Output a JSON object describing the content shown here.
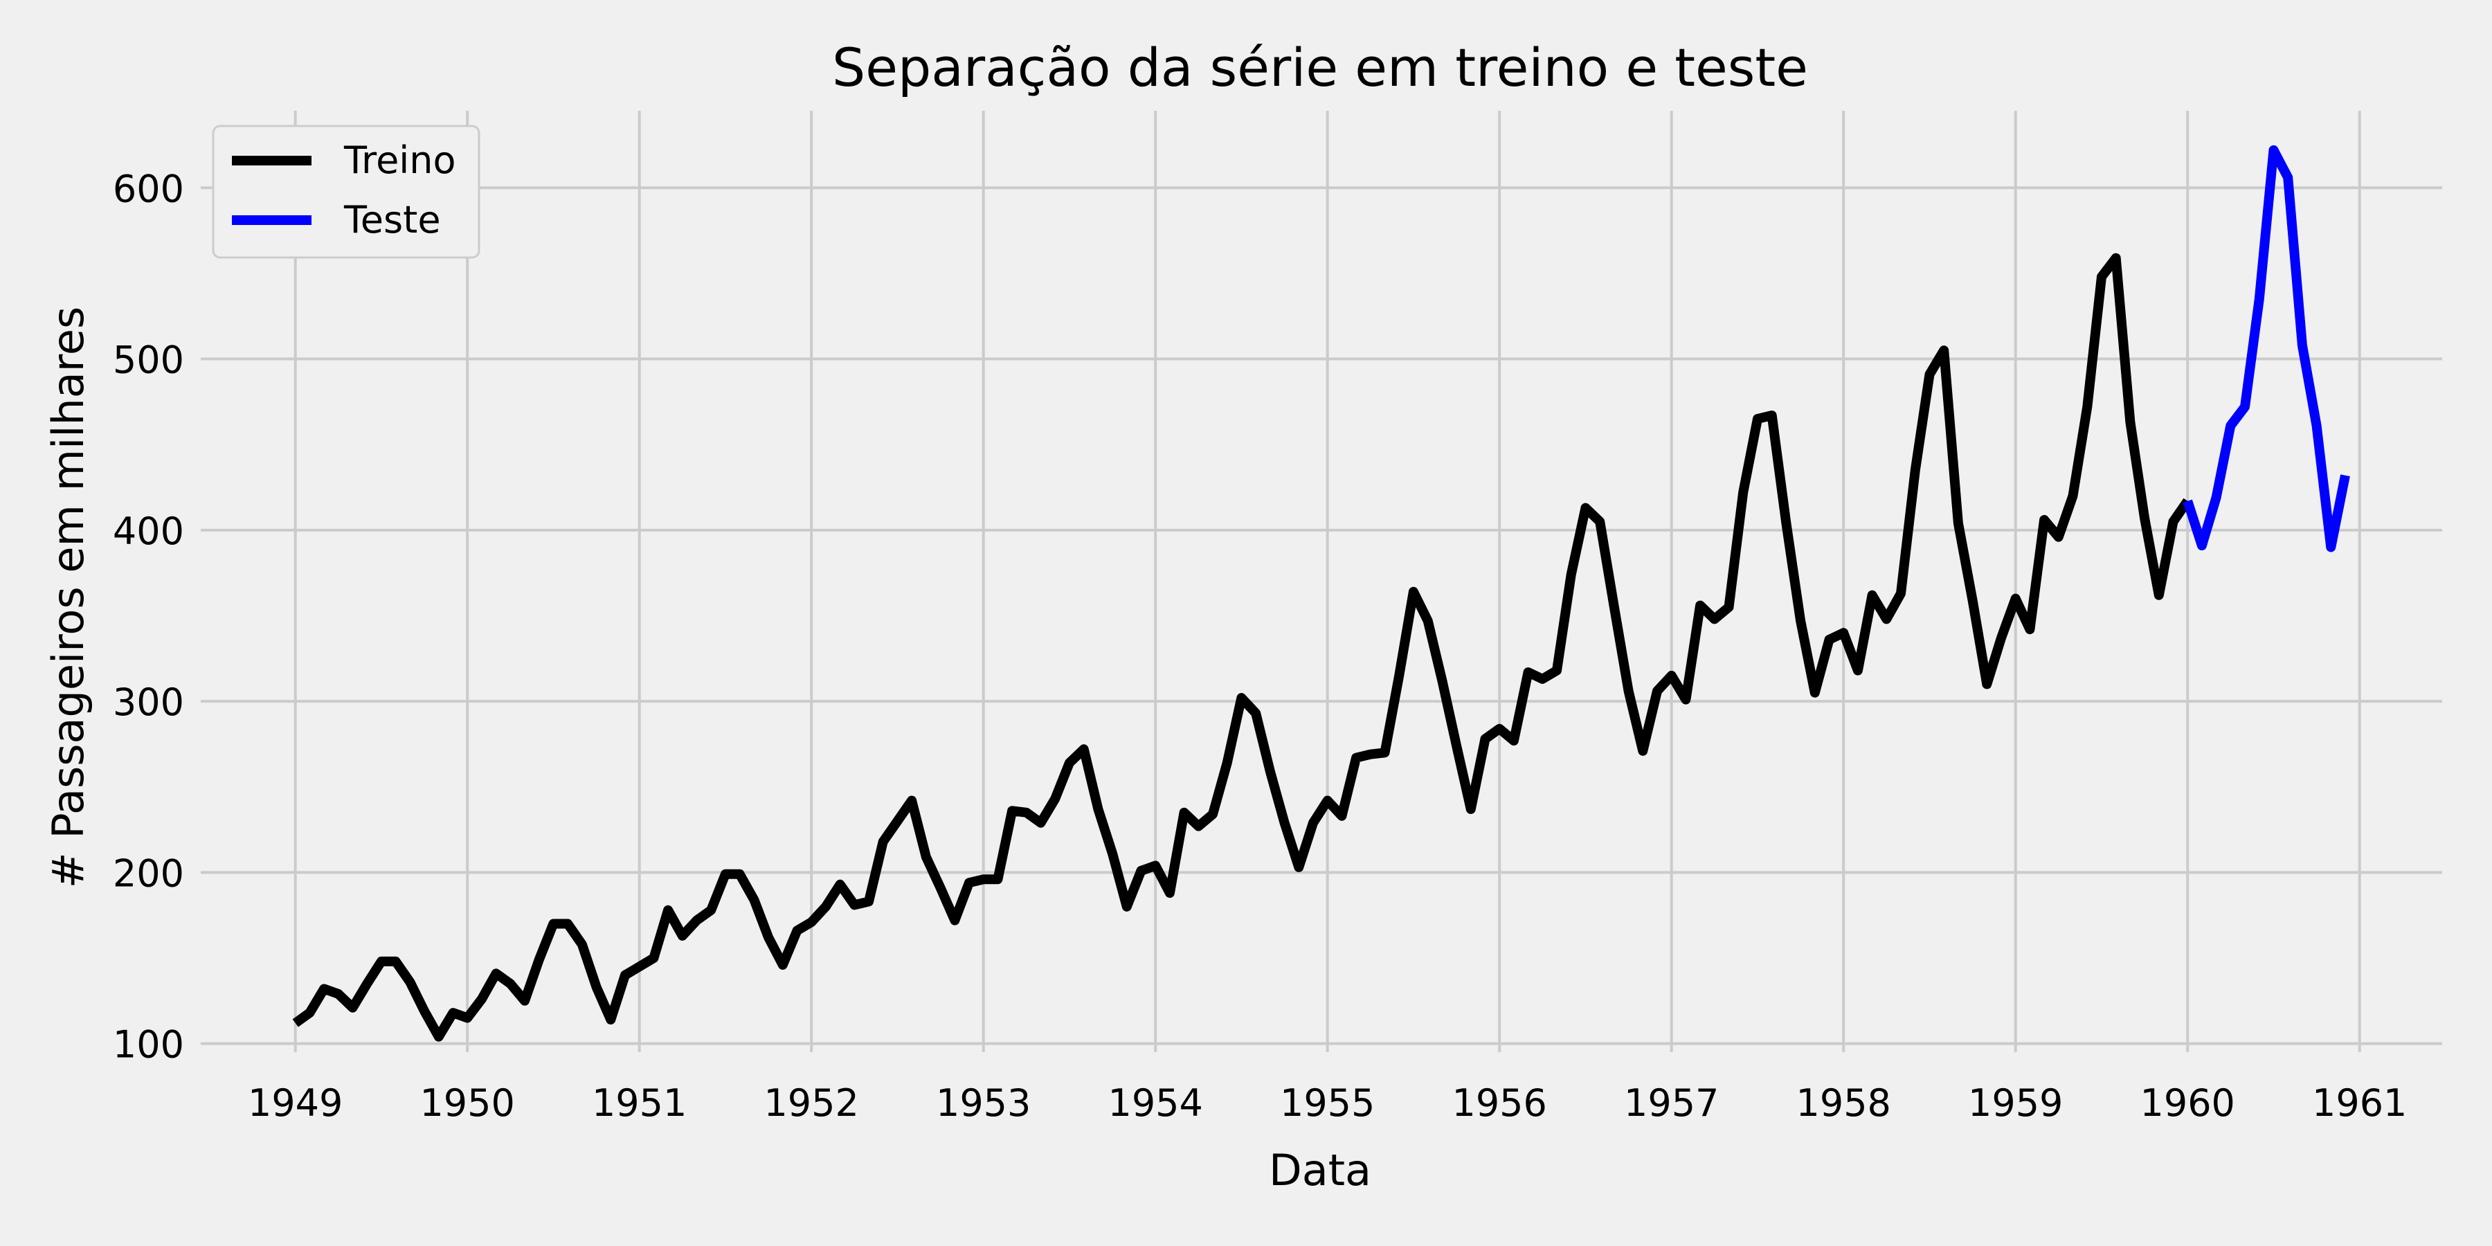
{
  "chart_data": {
    "type": "line",
    "title": "Separação da série em treino e teste",
    "xlabel": "Data",
    "ylabel": "# Passageiros em milhares",
    "xlim": [
      1948.45,
      1961.48
    ],
    "ylim": [
      95,
      645
    ],
    "x_ticks": [
      "1949",
      "1950",
      "1951",
      "1952",
      "1953",
      "1954",
      "1955",
      "1956",
      "1957",
      "1958",
      "1959",
      "1960",
      "1961"
    ],
    "y_ticks": [
      100,
      200,
      300,
      400,
      500,
      600
    ],
    "grid": true,
    "legend_position": "top-left",
    "series": [
      {
        "name": "Treino",
        "color": "#000000",
        "start": "1949-01",
        "frequency": "monthly",
        "values": [
          112,
          118,
          132,
          129,
          121,
          135,
          148,
          148,
          136,
          119,
          104,
          118,
          115,
          126,
          141,
          135,
          125,
          149,
          170,
          170,
          158,
          133,
          114,
          140,
          145,
          150,
          178,
          163,
          172,
          178,
          199,
          199,
          184,
          162,
          146,
          166,
          171,
          180,
          193,
          181,
          183,
          218,
          230,
          242,
          209,
          191,
          172,
          194,
          196,
          196,
          236,
          235,
          229,
          243,
          264,
          272,
          237,
          211,
          180,
          201,
          204,
          188,
          235,
          227,
          234,
          264,
          302,
          293,
          259,
          229,
          203,
          229,
          242,
          233,
          267,
          269,
          270,
          315,
          364,
          347,
          312,
          274,
          237,
          278,
          284,
          277,
          317,
          313,
          318,
          374,
          413,
          405,
          355,
          306,
          271,
          306,
          315,
          301,
          356,
          348,
          355,
          422,
          465,
          467,
          404,
          347,
          305,
          336,
          340,
          318,
          362,
          348,
          363,
          435,
          491,
          505,
          404,
          359,
          310,
          337,
          360,
          342,
          406,
          396,
          420,
          472,
          548,
          559,
          463,
          407,
          362,
          405,
          417
        ]
      },
      {
        "name": "Teste",
        "color": "#0000ff",
        "start": "1960-01",
        "frequency": "monthly",
        "values": [
          417,
          391,
          419,
          461,
          472,
          535,
          622,
          606,
          508,
          461,
          390,
          432
        ]
      }
    ]
  }
}
